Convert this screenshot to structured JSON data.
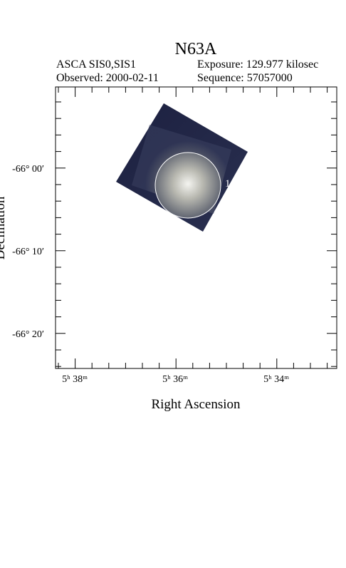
{
  "header": {
    "title": "N63A",
    "instrument": "ASCA SIS0,SIS1",
    "exposure": "Exposure: 129.977 kilosec",
    "observed": "Observed: 2000-02-11",
    "sequence": "Sequence: 57057000"
  },
  "axes": {
    "x_label": "Right Ascension",
    "y_label": "Declination",
    "x_ticks": [
      "5ʰ 38ᵐ",
      "5ʰ 36ᵐ",
      "5ʰ 34ᵐ"
    ],
    "y_ticks": [
      "-66° 00′",
      "-66° 10′",
      "-66° 20′"
    ]
  },
  "regions": [
    {
      "label": "1"
    }
  ]
}
